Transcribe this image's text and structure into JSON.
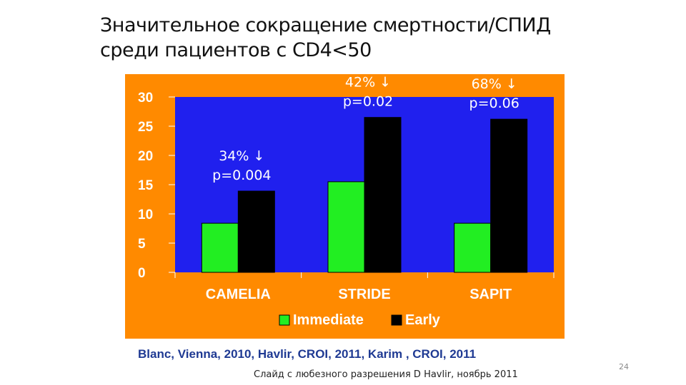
{
  "slide": {
    "title_line1": "Значительное сокращение смертности/СПИД",
    "title_line2": "среди пациентов с CD4<50",
    "citation": "Blanc, Vienna, 2010, Havlir, CROI, 2011, Karim , CROI, 2011",
    "courtesy": "Слайд с любезного разрешения D Havlir, ноябрь 2011",
    "page_number": "24"
  },
  "chart_data": {
    "type": "bar",
    "categories": [
      "CAMELIA",
      "STRIDE",
      "SAPIT"
    ],
    "series": [
      {
        "name": "Immediate",
        "values": [
          8.4,
          15.5,
          8.4
        ],
        "color": "#22ee22"
      },
      {
        "name": "Early",
        "values": [
          13.9,
          26.5,
          26.2
        ],
        "color": "#000000"
      }
    ],
    "ylim": [
      0,
      30
    ],
    "yticks": [
      "0",
      "5",
      "10",
      "15",
      "20",
      "25",
      "30"
    ],
    "grid": false,
    "legend_position": "bottom",
    "plot_background": "#2020ee",
    "frame_background": "#ff8a00",
    "annotations": [
      {
        "category": "CAMELIA",
        "line1": "34% ↓",
        "line2": "p=0.004"
      },
      {
        "category": "STRIDE",
        "line1": "42% ↓",
        "line2": "p=0.02"
      },
      {
        "category": "SAPIT",
        "line1": "68% ↓",
        "line2": "p=0.06"
      }
    ]
  }
}
